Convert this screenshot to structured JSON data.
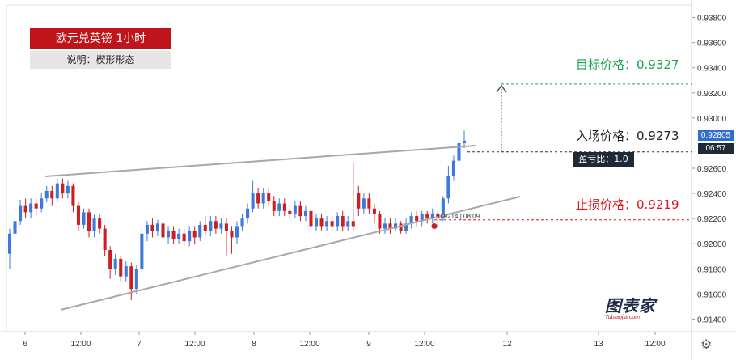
{
  "header": {
    "title": "欧元兑英镑 1小时",
    "subtitle": "说明：楔形形态"
  },
  "annotations": {
    "target": "目标价格：0.9327",
    "entry": "入场价格：0.9273",
    "stop": "止损价格：0.9219",
    "profit_loss_ratio": "盈亏比：1.0",
    "stop_marker_label": "0.9214 | 08:09"
  },
  "price_axis": {
    "ticks": [
      "0.93800",
      "0.93600",
      "0.93400",
      "0.93200",
      "0.93000",
      "0.92600",
      "0.92400",
      "0.92200",
      "0.92000",
      "0.91800",
      "0.91600",
      "0.91400"
    ],
    "current_price": "0.92805",
    "countdown": "06:57"
  },
  "time_axis": {
    "ticks": [
      "6",
      "12:00",
      "7",
      "12:00",
      "8",
      "12:00",
      "9",
      "12:00",
      "12",
      "13",
      "12:00"
    ]
  },
  "logo": {
    "name": "图表家",
    "subtext": "Tubiaojia.com"
  },
  "icons": {
    "settings": "gear-icon",
    "target_arrow": "arrow-up-icon"
  },
  "colors": {
    "up": "#3d7ad8",
    "down": "#cc1f24",
    "target": "#1aa24a",
    "stop": "#e0141e",
    "wedge": "#a8a8a8"
  },
  "chart_data": {
    "type": "candlestick",
    "title": "欧元兑英镑 1小时",
    "ylim": [
      0.913,
      0.939
    ],
    "levels": {
      "target": 0.9327,
      "entry": 0.9273,
      "stop": 0.9219,
      "stop_marker": 0.9214
    },
    "wedge_lines": [
      {
        "name": "upper",
        "points": [
          [
            0,
            0.9248
          ],
          [
            160,
            0.927
          ]
        ]
      },
      {
        "name": "lower",
        "points": [
          [
            0,
            0.9142
          ],
          [
            170,
            0.923
          ]
        ]
      }
    ],
    "candles": [
      [
        0.9192,
        0.9208,
        0.918,
        0.9212
      ],
      [
        0.9208,
        0.9218,
        0.9203,
        0.9222
      ],
      [
        0.9218,
        0.923,
        0.9215,
        0.9235
      ],
      [
        0.923,
        0.9225,
        0.922,
        0.9236
      ],
      [
        0.9225,
        0.9232,
        0.922,
        0.9236
      ],
      [
        0.9232,
        0.9228,
        0.9222,
        0.9236
      ],
      [
        0.9228,
        0.9236,
        0.9225,
        0.924
      ],
      [
        0.9236,
        0.9242,
        0.9233,
        0.9246
      ],
      [
        0.9242,
        0.9236,
        0.923,
        0.9246
      ],
      [
        0.9236,
        0.9248,
        0.9233,
        0.9252
      ],
      [
        0.9248,
        0.924,
        0.9236,
        0.9252
      ],
      [
        0.924,
        0.9246,
        0.9236,
        0.925
      ],
      [
        0.9246,
        0.923,
        0.9225,
        0.9248
      ],
      [
        0.923,
        0.9215,
        0.921,
        0.9233
      ],
      [
        0.9215,
        0.9225,
        0.9212,
        0.9228
      ],
      [
        0.9225,
        0.921,
        0.9205,
        0.9228
      ],
      [
        0.921,
        0.922,
        0.9205,
        0.9223
      ],
      [
        0.922,
        0.9212,
        0.9208,
        0.9224
      ],
      [
        0.9212,
        0.9195,
        0.919,
        0.9215
      ],
      [
        0.9195,
        0.918,
        0.9172,
        0.9198
      ],
      [
        0.918,
        0.9188,
        0.9175,
        0.9192
      ],
      [
        0.9188,
        0.9174,
        0.917,
        0.919
      ],
      [
        0.9174,
        0.9182,
        0.917,
        0.9186
      ],
      [
        0.9182,
        0.9164,
        0.9155,
        0.9185
      ],
      [
        0.9164,
        0.918,
        0.916,
        0.9183
      ],
      [
        0.918,
        0.9208,
        0.9176,
        0.9212
      ],
      [
        0.9208,
        0.9215,
        0.9202,
        0.9218
      ],
      [
        0.9215,
        0.921,
        0.9205,
        0.922
      ],
      [
        0.921,
        0.9216,
        0.9206,
        0.9219
      ],
      [
        0.9216,
        0.9205,
        0.92,
        0.9219
      ],
      [
        0.9205,
        0.921,
        0.92,
        0.9214
      ],
      [
        0.921,
        0.9204,
        0.92,
        0.9214
      ],
      [
        0.9204,
        0.9208,
        0.92,
        0.9212
      ],
      [
        0.9208,
        0.9202,
        0.9198,
        0.9212
      ],
      [
        0.9202,
        0.921,
        0.9198,
        0.9214
      ],
      [
        0.921,
        0.9205,
        0.92,
        0.9214
      ],
      [
        0.9205,
        0.9215,
        0.9202,
        0.9218
      ],
      [
        0.9215,
        0.921,
        0.9206,
        0.9222
      ],
      [
        0.921,
        0.9218,
        0.9206,
        0.9222
      ],
      [
        0.9218,
        0.9212,
        0.9208,
        0.9222
      ],
      [
        0.9212,
        0.9216,
        0.9208,
        0.922
      ],
      [
        0.9216,
        0.921,
        0.919,
        0.922
      ],
      [
        0.921,
        0.9205,
        0.9192,
        0.9214
      ],
      [
        0.9205,
        0.9214,
        0.92,
        0.9218
      ],
      [
        0.9214,
        0.922,
        0.921,
        0.9224
      ],
      [
        0.922,
        0.9228,
        0.9216,
        0.9232
      ],
      [
        0.9228,
        0.924,
        0.9225,
        0.925
      ],
      [
        0.924,
        0.9232,
        0.9228,
        0.9244
      ],
      [
        0.9232,
        0.924,
        0.9228,
        0.9244
      ],
      [
        0.924,
        0.9234,
        0.923,
        0.9244
      ],
      [
        0.9234,
        0.9226,
        0.9222,
        0.9238
      ],
      [
        0.9226,
        0.9232,
        0.9222,
        0.9236
      ],
      [
        0.9232,
        0.9226,
        0.9222,
        0.9236
      ],
      [
        0.9226,
        0.9224,
        0.922,
        0.923
      ],
      [
        0.9224,
        0.923,
        0.922,
        0.9234
      ],
      [
        0.923,
        0.9222,
        0.9218,
        0.9234
      ],
      [
        0.9222,
        0.9226,
        0.9218,
        0.923
      ],
      [
        0.9226,
        0.9214,
        0.921,
        0.923
      ],
      [
        0.9214,
        0.922,
        0.921,
        0.9224
      ],
      [
        0.922,
        0.9214,
        0.921,
        0.9224
      ],
      [
        0.9214,
        0.9218,
        0.921,
        0.9222
      ],
      [
        0.9218,
        0.9214,
        0.921,
        0.9222
      ],
      [
        0.9214,
        0.9222,
        0.921,
        0.9225
      ],
      [
        0.9222,
        0.9214,
        0.921,
        0.9226
      ],
      [
        0.9214,
        0.9218,
        0.921,
        0.9222
      ],
      [
        0.9218,
        0.9214,
        0.921,
        0.9265
      ],
      [
        0.924,
        0.9228,
        0.9222,
        0.9246
      ],
      [
        0.9228,
        0.9236,
        0.9224,
        0.924
      ],
      [
        0.9236,
        0.9228,
        0.9224,
        0.924
      ],
      [
        0.9228,
        0.9224,
        0.9216,
        0.9232
      ],
      [
        0.9224,
        0.9212,
        0.9208,
        0.9226
      ],
      [
        0.9212,
        0.9216,
        0.9208,
        0.922
      ],
      [
        0.9216,
        0.9212,
        0.9208,
        0.922
      ],
      [
        0.9212,
        0.9216,
        0.921,
        0.922
      ],
      [
        0.9216,
        0.921,
        0.9208,
        0.9218
      ],
      [
        0.921,
        0.9216,
        0.9208,
        0.922
      ],
      [
        0.9216,
        0.9222,
        0.9212,
        0.9225
      ],
      [
        0.9222,
        0.9218,
        0.9214,
        0.9226
      ],
      [
        0.9218,
        0.9224,
        0.9214,
        0.9226
      ],
      [
        0.9224,
        0.922,
        0.9216,
        0.9226
      ],
      [
        0.922,
        0.9224,
        0.9216,
        0.9228
      ],
      [
        0.9224,
        0.922,
        0.9214,
        0.9226
      ],
      [
        0.922,
        0.9236,
        0.9218,
        0.9238
      ],
      [
        0.9236,
        0.9254,
        0.9232,
        0.9262
      ],
      [
        0.9254,
        0.9266,
        0.925,
        0.927
      ],
      [
        0.9266,
        0.928,
        0.9262,
        0.9288
      ],
      [
        0.928,
        0.9282,
        0.9276,
        0.929
      ]
    ]
  }
}
